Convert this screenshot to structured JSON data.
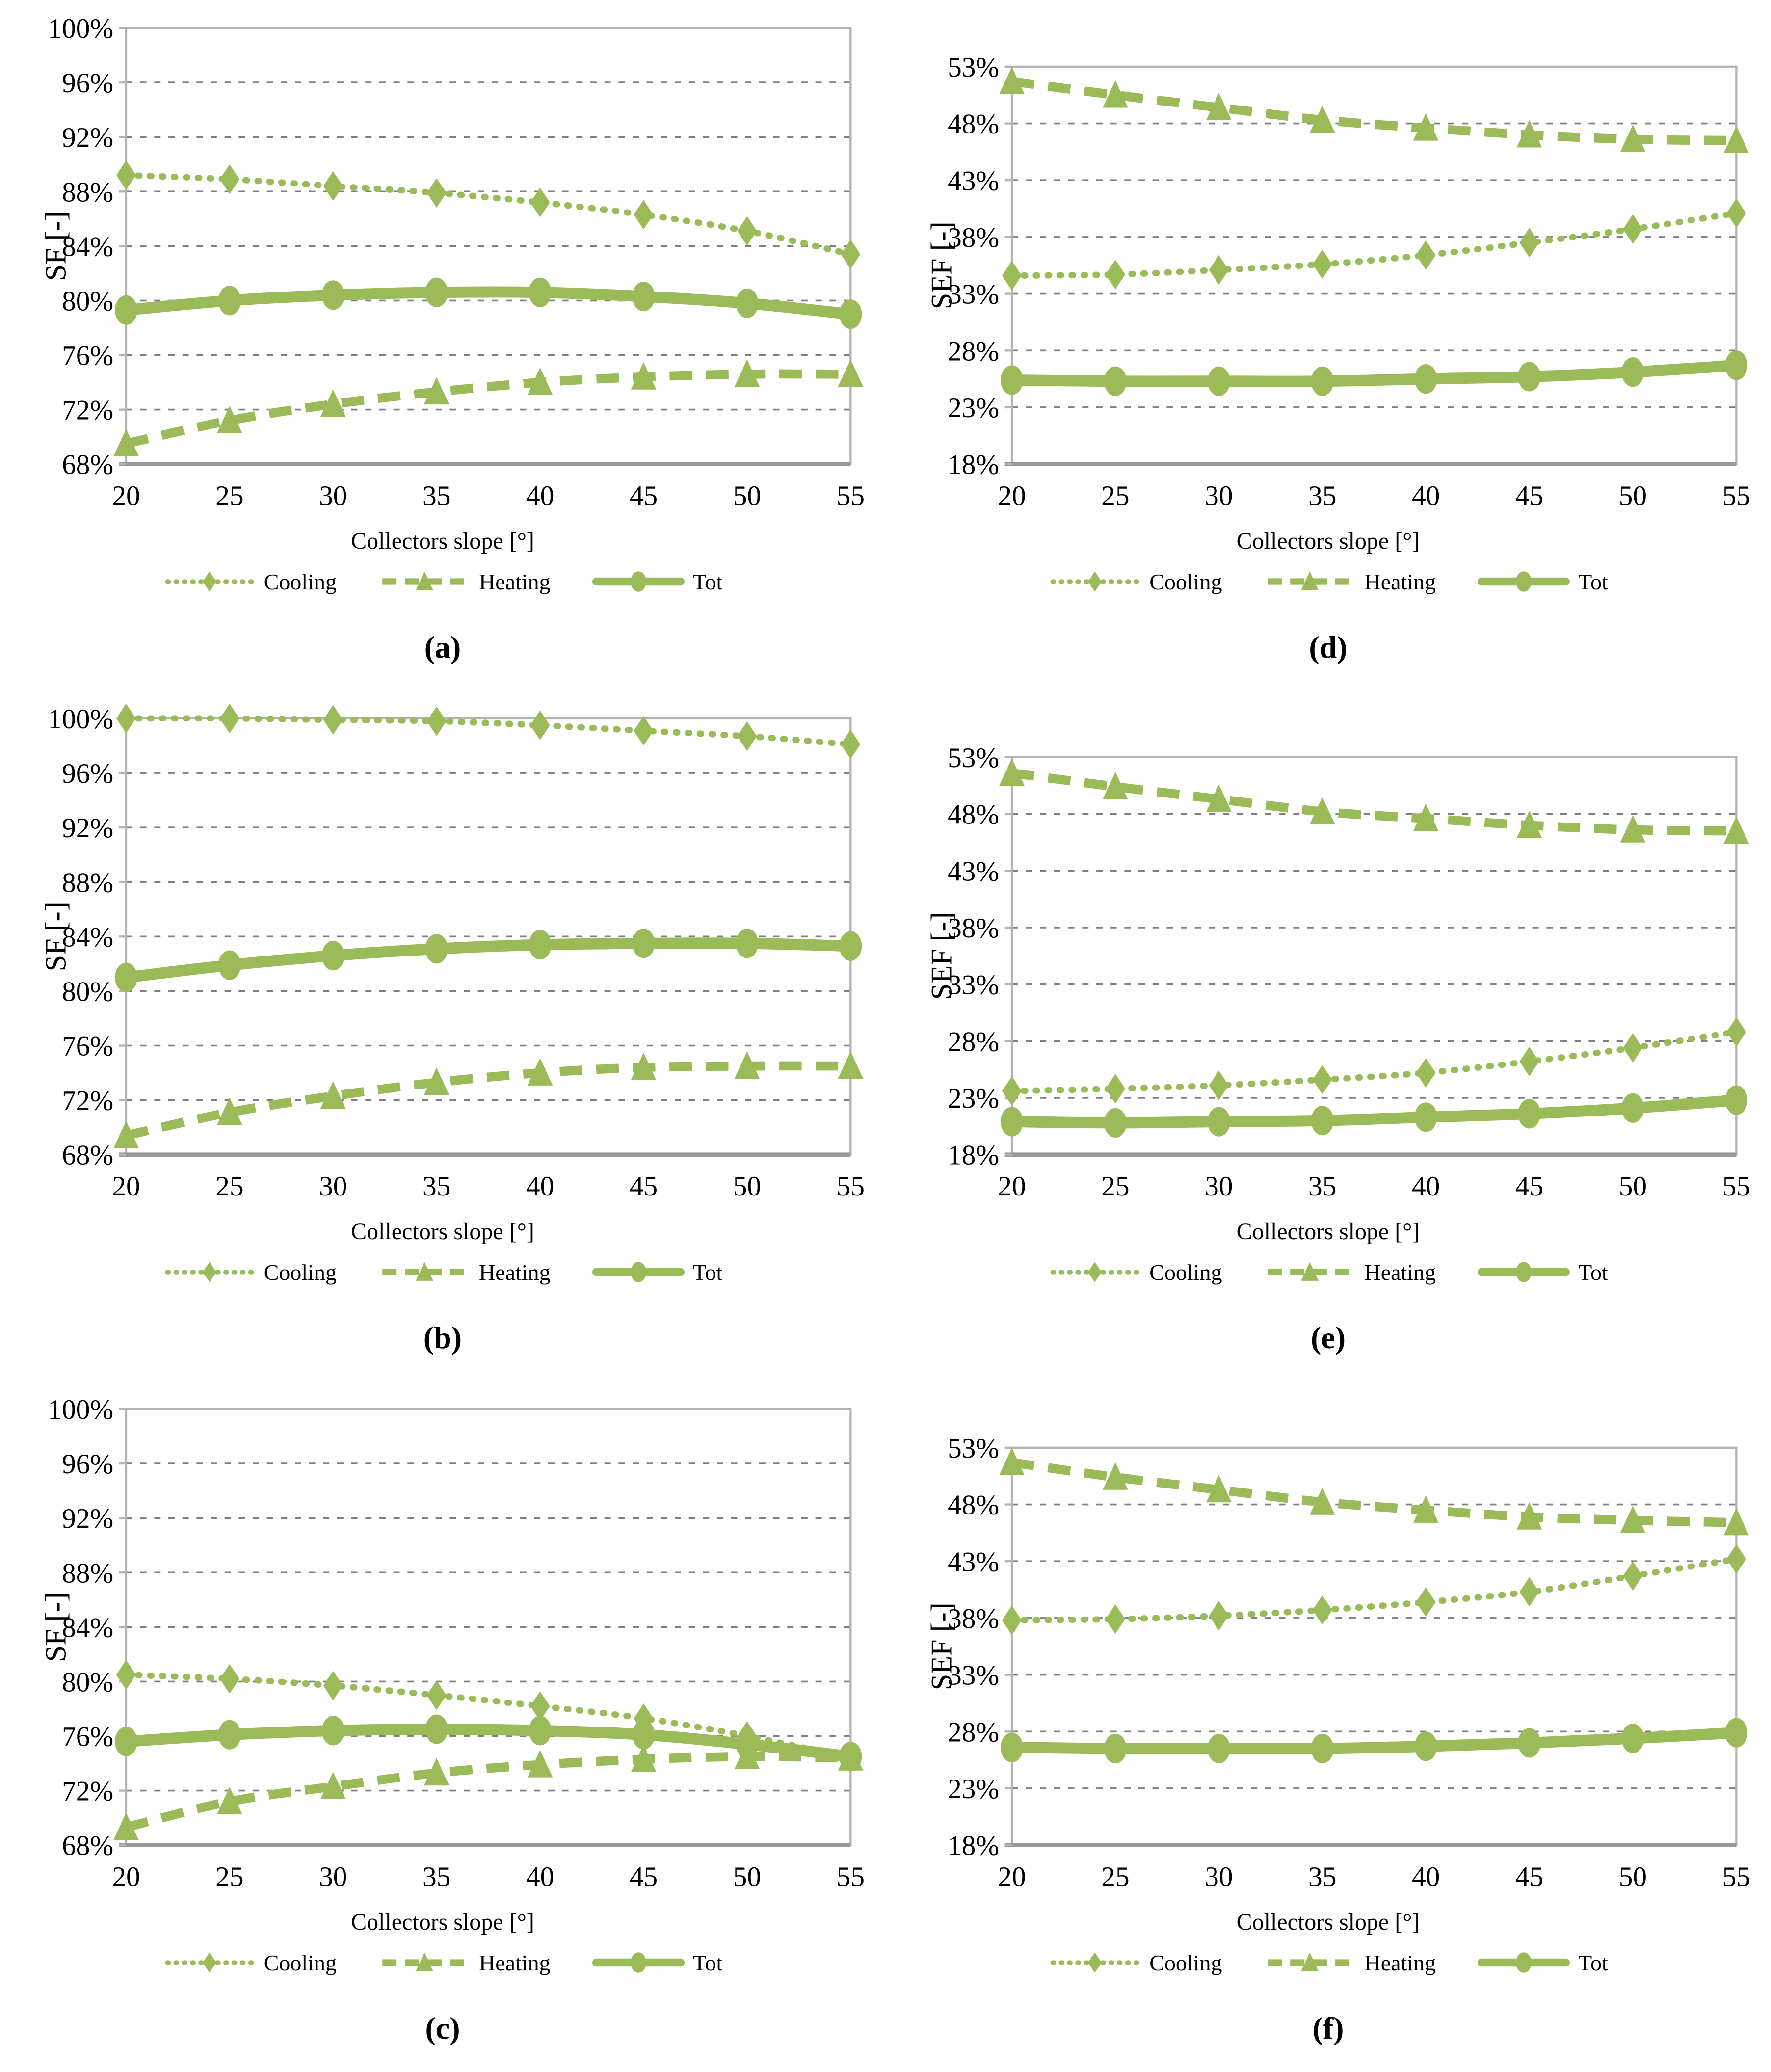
{
  "page": {
    "background": "#ffffff"
  },
  "colors": {
    "series_green": "#9bbb59",
    "gridline": "#7f7f7f",
    "plot_border": "#b3b3b3",
    "bottom_axis": "#999999",
    "text": "#000000"
  },
  "legend": {
    "items": [
      {
        "label": "Cooling",
        "marker": "diamond",
        "line": "dotted"
      },
      {
        "label": "Heating",
        "marker": "triangle",
        "line": "dashed"
      },
      {
        "label": "Tot",
        "marker": "circle",
        "line": "solid"
      }
    ]
  },
  "chart_data": [
    {
      "id": "a",
      "type": "line",
      "caption": "(a)",
      "xlabel": "Collectors slope [°]",
      "ylabel": "SF [-]",
      "x": [
        20,
        25,
        30,
        35,
        40,
        45,
        50,
        55
      ],
      "ylim": [
        68,
        100
      ],
      "ystep": 4,
      "tick_suffix": "%",
      "grid": "horizontal-dashed",
      "legend_position": "below",
      "series": [
        {
          "name": "Cooling",
          "marker": "diamond",
          "line": "dotted",
          "values": [
            89.2,
            88.9,
            88.4,
            87.9,
            87.2,
            86.3,
            85.1,
            83.4
          ]
        },
        {
          "name": "Heating",
          "marker": "triangle",
          "line": "dashed",
          "values": [
            69.5,
            71.2,
            72.4,
            73.3,
            74.0,
            74.4,
            74.6,
            74.6
          ]
        },
        {
          "name": "Tot",
          "marker": "circle",
          "line": "solid",
          "values": [
            79.3,
            80.0,
            80.4,
            80.6,
            80.6,
            80.3,
            79.8,
            79.0
          ]
        }
      ]
    },
    {
      "id": "b",
      "type": "line",
      "caption": "(b)",
      "xlabel": "Collectors slope [°]",
      "ylabel": "SF [-]",
      "x": [
        20,
        25,
        30,
        35,
        40,
        45,
        50,
        55
      ],
      "ylim": [
        68,
        100
      ],
      "ystep": 4,
      "tick_suffix": "%",
      "grid": "horizontal-dashed",
      "legend_position": "below",
      "series": [
        {
          "name": "Cooling",
          "marker": "diamond",
          "line": "dotted",
          "values": [
            100.0,
            100.0,
            99.9,
            99.8,
            99.5,
            99.1,
            98.7,
            98.1
          ]
        },
        {
          "name": "Heating",
          "marker": "triangle",
          "line": "dashed",
          "values": [
            69.4,
            71.1,
            72.3,
            73.3,
            74.0,
            74.4,
            74.5,
            74.5
          ]
        },
        {
          "name": "Tot",
          "marker": "circle",
          "line": "solid",
          "values": [
            81.0,
            81.9,
            82.6,
            83.1,
            83.4,
            83.5,
            83.5,
            83.3
          ]
        }
      ]
    },
    {
      "id": "c",
      "type": "line",
      "caption": "(c)",
      "xlabel": "Collectors slope [°]",
      "ylabel": "SF [-]",
      "x": [
        20,
        25,
        30,
        35,
        40,
        45,
        50,
        55
      ],
      "ylim": [
        68,
        100
      ],
      "ystep": 4,
      "tick_suffix": "%",
      "grid": "horizontal-dashed",
      "legend_position": "below",
      "series": [
        {
          "name": "Cooling",
          "marker": "diamond",
          "line": "dotted",
          "values": [
            80.5,
            80.2,
            79.7,
            79.0,
            78.2,
            77.3,
            76.0,
            74.4
          ]
        },
        {
          "name": "Heating",
          "marker": "triangle",
          "line": "dashed",
          "values": [
            69.3,
            71.2,
            72.3,
            73.3,
            73.9,
            74.3,
            74.5,
            74.4
          ]
        },
        {
          "name": "Tot",
          "marker": "circle",
          "line": "solid",
          "values": [
            75.6,
            76.1,
            76.4,
            76.5,
            76.4,
            76.1,
            75.4,
            74.5
          ]
        }
      ]
    },
    {
      "id": "d",
      "type": "line",
      "caption": "(d)",
      "xlabel": "Collectors slope [°]",
      "ylabel": "SEF [-]",
      "x": [
        20,
        25,
        30,
        35,
        40,
        45,
        50,
        55
      ],
      "ylim": [
        18,
        53
      ],
      "ystep": 5,
      "tick_suffix": "%",
      "grid": "horizontal-dashed",
      "legend_position": "below",
      "series": [
        {
          "name": "Cooling",
          "marker": "diamond",
          "line": "dotted",
          "values": [
            34.6,
            34.7,
            35.1,
            35.6,
            36.4,
            37.5,
            38.7,
            40.1
          ]
        },
        {
          "name": "Heating",
          "marker": "triangle",
          "line": "dashed",
          "values": [
            51.7,
            50.5,
            49.4,
            48.3,
            47.6,
            47.0,
            46.6,
            46.5
          ]
        },
        {
          "name": "Tot",
          "marker": "circle",
          "line": "solid",
          "values": [
            25.4,
            25.3,
            25.3,
            25.3,
            25.5,
            25.7,
            26.1,
            26.7
          ]
        }
      ]
    },
    {
      "id": "e",
      "type": "line",
      "caption": "(e)",
      "xlabel": "Collectors slope [°]",
      "ylabel": "SEF [-]",
      "x": [
        20,
        25,
        30,
        35,
        40,
        45,
        50,
        55
      ],
      "ylim": [
        18,
        53
      ],
      "ystep": 5,
      "tick_suffix": "%",
      "grid": "horizontal-dashed",
      "legend_position": "below",
      "series": [
        {
          "name": "Cooling",
          "marker": "diamond",
          "line": "dotted",
          "values": [
            23.6,
            23.8,
            24.1,
            24.6,
            25.2,
            26.2,
            27.4,
            28.8
          ]
        },
        {
          "name": "Heating",
          "marker": "triangle",
          "line": "dashed",
          "values": [
            51.6,
            50.4,
            49.3,
            48.2,
            47.6,
            47.0,
            46.6,
            46.5
          ]
        },
        {
          "name": "Tot",
          "marker": "circle",
          "line": "solid",
          "values": [
            20.9,
            20.8,
            20.9,
            21.0,
            21.3,
            21.6,
            22.1,
            22.8
          ]
        }
      ]
    },
    {
      "id": "f",
      "type": "line",
      "caption": "(f)",
      "xlabel": "Collectors slope [°]",
      "ylabel": "SEF [-]",
      "x": [
        20,
        25,
        30,
        35,
        40,
        45,
        50,
        55
      ],
      "ylim": [
        18,
        53
      ],
      "ystep": 5,
      "tick_suffix": "%",
      "grid": "horizontal-dashed",
      "legend_position": "below",
      "series": [
        {
          "name": "Cooling",
          "marker": "diamond",
          "line": "dotted",
          "values": [
            37.8,
            37.9,
            38.2,
            38.7,
            39.4,
            40.3,
            41.7,
            43.2
          ]
        },
        {
          "name": "Heating",
          "marker": "triangle",
          "line": "dashed",
          "values": [
            51.7,
            50.4,
            49.3,
            48.2,
            47.5,
            46.9,
            46.6,
            46.4
          ]
        },
        {
          "name": "Tot",
          "marker": "circle",
          "line": "solid",
          "values": [
            26.6,
            26.5,
            26.5,
            26.5,
            26.7,
            27.0,
            27.4,
            27.9
          ]
        }
      ]
    }
  ]
}
